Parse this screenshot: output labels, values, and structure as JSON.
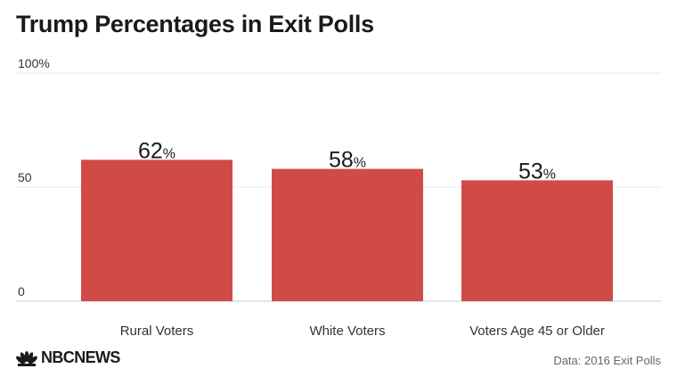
{
  "title": "Trump Percentages in Exit Polls",
  "source": "Data: 2016 Exit Polls",
  "logo": {
    "text": "NBCNEWS",
    "icon": "peacock-icon"
  },
  "colors": {
    "bar": "#d04b47",
    "grid": "#e8e8e8",
    "axis": "#cfcfcf",
    "text": "#222222"
  },
  "chart_data": {
    "type": "bar",
    "title": "Trump Percentages in Exit Polls",
    "categories": [
      "Rural Voters",
      "White Voters",
      "Voters Age 45 or Older"
    ],
    "values": [
      62,
      58,
      53
    ],
    "value_labels": [
      "62",
      "58",
      "53"
    ],
    "value_suffix": "%",
    "ylim": [
      0,
      100
    ],
    "yticks": [
      0,
      50,
      100
    ],
    "ytick_labels": [
      "0",
      "50",
      "100%"
    ],
    "grid": true,
    "xlabel": "",
    "ylabel": ""
  }
}
